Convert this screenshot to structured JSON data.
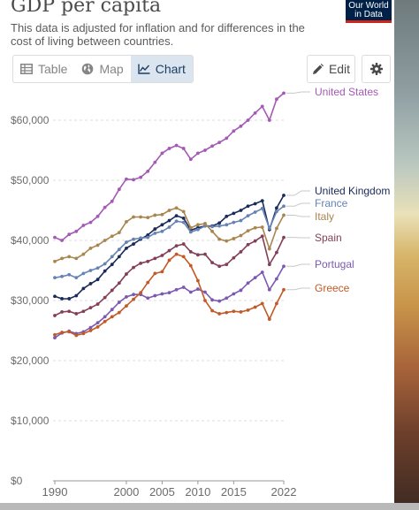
{
  "header": {
    "title": "GDP per capita",
    "subtitle": "This data is adjusted for inflation and for differences in the cost of living between countries.",
    "logo_line1": "Our World",
    "logo_line2": "in Data"
  },
  "toolbar": {
    "tab_table": "Table",
    "tab_map": "Map",
    "tab_chart": "Chart",
    "edit_label": "Edit"
  },
  "icons": {
    "table": "table-icon",
    "map": "globe-icon",
    "chart": "line-chart-icon",
    "edit": "pencil-icon",
    "settings": "gear-icon"
  },
  "colors": {
    "accent_tab_bg": "#dbe5f0",
    "logo_bg": "#002147",
    "logo_red": "#ce261e"
  },
  "chart_data": {
    "type": "line",
    "xlabel": "",
    "ylabel": "",
    "ylim": [
      0,
      65000
    ],
    "xlim": [
      1990,
      2022
    ],
    "x_ticks": [
      1990,
      2000,
      2005,
      2010,
      2015,
      2022
    ],
    "y_ticks": [
      {
        "value": 0,
        "label": "$0"
      },
      {
        "value": 10000,
        "label": "$10,000"
      },
      {
        "value": 20000,
        "label": "$20,000"
      },
      {
        "value": 30000,
        "label": "$30,000"
      },
      {
        "value": 40000,
        "label": "$40,000"
      },
      {
        "value": 50000,
        "label": "$50,000"
      },
      {
        "value": 60000,
        "label": "$60,000"
      }
    ],
    "grid": "horizontal dashed",
    "legend": "right, labels at line ends",
    "x": [
      1990,
      1991,
      1992,
      1993,
      1994,
      1995,
      1996,
      1997,
      1998,
      1999,
      2000,
      2001,
      2002,
      2003,
      2004,
      2005,
      2006,
      2007,
      2008,
      2009,
      2010,
      2011,
      2012,
      2013,
      2014,
      2015,
      2016,
      2017,
      2018,
      2019,
      2020,
      2021,
      2022
    ],
    "series": [
      {
        "name": "United States",
        "color": "#a45ab4",
        "values": [
          40500,
          40000,
          41000,
          41500,
          42500,
          43000,
          44000,
          45500,
          46500,
          48500,
          50200,
          50100,
          50500,
          51500,
          53000,
          54500,
          55300,
          55800,
          55300,
          53500,
          54500,
          55000,
          55700,
          56300,
          57000,
          58200,
          59000,
          60000,
          61200,
          62300,
          60000,
          63500,
          64500
        ]
      },
      {
        "name": "United Kingdom",
        "color": "#1b2b59",
        "values": [
          30700,
          30300,
          30300,
          30800,
          32000,
          32800,
          33500,
          34900,
          36000,
          37300,
          38700,
          39400,
          40200,
          40900,
          41900,
          42600,
          43300,
          44100,
          43700,
          41700,
          42100,
          42400,
          42400,
          42900,
          44000,
          44500,
          45000,
          45700,
          46100,
          46600,
          41800,
          45400,
          47500
        ]
      },
      {
        "name": "France",
        "color": "#6683b4",
        "values": [
          33800,
          34000,
          34300,
          33800,
          34500,
          35000,
          35400,
          36100,
          37300,
          38500,
          39700,
          40200,
          40400,
          40500,
          41200,
          41500,
          42200,
          43200,
          43000,
          41400,
          41800,
          42400,
          42300,
          42400,
          42600,
          43000,
          43300,
          44100,
          44700,
          45300,
          42000,
          44800,
          45700
        ]
      },
      {
        "name": "Italy",
        "color": "#a9854f",
        "values": [
          36500,
          37000,
          37300,
          37000,
          37700,
          38700,
          39200,
          40000,
          40700,
          41300,
          43100,
          43900,
          43900,
          43800,
          44200,
          44300,
          45000,
          45400,
          44800,
          42100,
          42600,
          42800,
          41500,
          40200,
          39900,
          40300,
          40800,
          41600,
          42100,
          42200,
          38600,
          42000,
          44200
        ]
      },
      {
        "name": "Spain",
        "color": "#833e59",
        "values": [
          27500,
          28100,
          28200,
          27800,
          28200,
          28800,
          29400,
          30500,
          31700,
          32900,
          34400,
          35500,
          36200,
          36500,
          37000,
          37500,
          38300,
          39100,
          39400,
          38100,
          37600,
          37700,
          36300,
          35700,
          36000,
          37100,
          38100,
          39300,
          39900,
          40700,
          36000,
          38000,
          40500
        ]
      },
      {
        "name": "Portugal",
        "color": "#7c58b2",
        "values": [
          23800,
          24600,
          24900,
          24500,
          24800,
          25500,
          26300,
          27300,
          28500,
          29700,
          30600,
          31000,
          31000,
          30400,
          30800,
          31100,
          31300,
          31800,
          32200,
          31400,
          31900,
          31400,
          30100,
          29900,
          30400,
          31100,
          31700,
          32900,
          33800,
          34700,
          31800,
          33600,
          35700
        ]
      },
      {
        "name": "Greece",
        "color": "#c15a28",
        "values": [
          24300,
          24700,
          24800,
          24200,
          24500,
          25000,
          25600,
          26500,
          27300,
          28000,
          29100,
          30200,
          31300,
          33000,
          34500,
          34800,
          36700,
          37700,
          37300,
          35800,
          33300,
          30000,
          28300,
          27800,
          28000,
          28200,
          28100,
          28400,
          28900,
          29500,
          26900,
          29500,
          31800
        ]
      }
    ]
  }
}
